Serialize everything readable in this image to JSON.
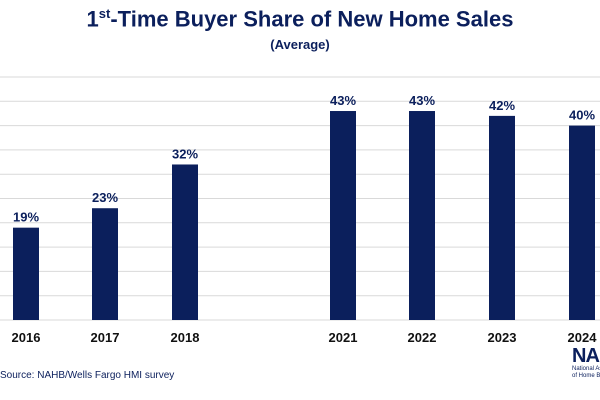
{
  "chart_data": {
    "type": "bar",
    "title_prefix": "1",
    "title_sup": "st",
    "title_rest": "-Time Buyer Share of New Home Sales",
    "subtitle": "(Average)",
    "categories": [
      "2016",
      "2017",
      "2018",
      "2021",
      "2022",
      "2023",
      "2024"
    ],
    "values": [
      19,
      23,
      32,
      43,
      43,
      42,
      40
    ],
    "value_labels": [
      "19%",
      "23%",
      "32%",
      "43%",
      "43%",
      "42%",
      "40%"
    ],
    "ylim": [
      0,
      50
    ],
    "grid": true,
    "bar_color": "#0b1f5c"
  },
  "source": "Source: NAHB/Wells Fargo HMI survey",
  "logo": {
    "mark": "NAHB",
    "line1": "National Association",
    "line2": "of Home Builders"
  }
}
